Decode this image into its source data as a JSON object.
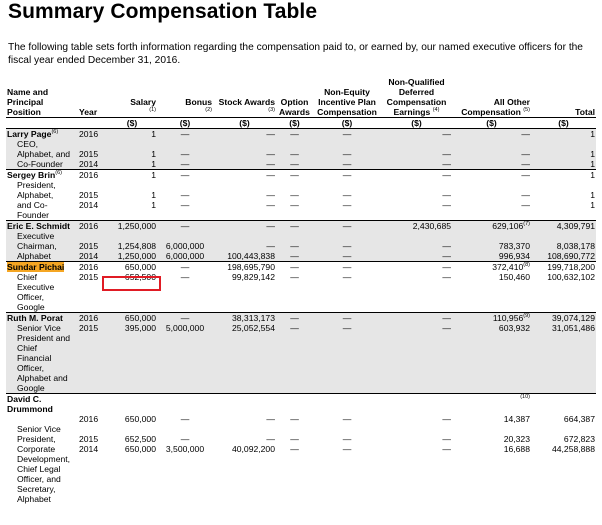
{
  "title": "Summary Compensation Table",
  "intro": "The following table sets forth information regarding the compensation paid to, or earned by, our named executive officers for the fiscal year ended December 31, 2016.",
  "headers": {
    "name": "Name and Principal Position",
    "year": "Year",
    "salary": "Salary",
    "salary_fn": "(1)",
    "bonus": "Bonus",
    "bonus_fn": "(2)",
    "stock": "Stock Awards",
    "stock_fn": "(3)",
    "option": "Option Awards",
    "nonequity": "Non-Equity Incentive Plan Compensation",
    "nqdc": "Non-Qualified Deferred Compensation Earnings",
    "nqdc_fn": "(4)",
    "other": "All Other Compensation",
    "other_fn": "(5)",
    "total": "Total",
    "unit": "($)"
  },
  "highlight_color": "#f5a623",
  "box_color": "#e01b24",
  "executives": [
    {
      "name": "Larry Page",
      "name_fn": "(6)",
      "rows": [
        {
          "role": "CEO,",
          "year": "2016",
          "salary": "1",
          "bonus": "—",
          "stock": "—",
          "option": "—",
          "nonequity": "—",
          "nqdc": "—",
          "other": "—",
          "other_fn": "",
          "total": "1"
        },
        {
          "role": "Alphabet, and",
          "year": "2015",
          "salary": "1",
          "bonus": "—",
          "stock": "—",
          "option": "—",
          "nonequity": "—",
          "nqdc": "—",
          "other": "—",
          "other_fn": "",
          "total": "1"
        },
        {
          "role": "Co-Founder",
          "year": "2014",
          "salary": "1",
          "bonus": "—",
          "stock": "—",
          "option": "—",
          "nonequity": "—",
          "nqdc": "—",
          "other": "—",
          "other_fn": "",
          "total": "1"
        }
      ]
    },
    {
      "name": "Sergey Brin",
      "name_fn": "(6)",
      "rows": [
        {
          "role": "",
          "year": "2016",
          "salary": "1",
          "bonus": "—",
          "stock": "—",
          "option": "—",
          "nonequity": "—",
          "nqdc": "—",
          "other": "—",
          "other_fn": "",
          "total": "1"
        },
        {
          "role": "President,",
          "year": "",
          "salary": "",
          "bonus": "",
          "stock": "",
          "option": "",
          "nonequity": "",
          "nqdc": "",
          "other": "",
          "other_fn": "",
          "total": ""
        },
        {
          "role": "Alphabet,",
          "year": "2015",
          "salary": "1",
          "bonus": "—",
          "stock": "—",
          "option": "—",
          "nonequity": "—",
          "nqdc": "—",
          "other": "—",
          "other_fn": "",
          "total": "1"
        },
        {
          "role": "and Co-",
          "year": "2014",
          "salary": "1",
          "bonus": "—",
          "stock": "—",
          "option": "—",
          "nonequity": "—",
          "nqdc": "—",
          "other": "—",
          "other_fn": "",
          "total": "1"
        },
        {
          "role": "Founder",
          "year": "",
          "salary": "",
          "bonus": "",
          "stock": "",
          "option": "",
          "nonequity": "",
          "nqdc": "",
          "other": "",
          "other_fn": "",
          "total": ""
        }
      ]
    },
    {
      "name": "Eric E. Schmidt",
      "name_fn": "",
      "rows": [
        {
          "role": "",
          "year": "2016",
          "salary": "1,250,000",
          "bonus": "—",
          "stock": "—",
          "option": "—",
          "nonequity": "—",
          "nqdc": "2,430,685",
          "other": "629,106",
          "other_fn": "(7)",
          "total": "4,309,791"
        },
        {
          "role": "Executive",
          "year": "",
          "salary": "",
          "bonus": "",
          "stock": "",
          "option": "",
          "nonequity": "",
          "nqdc": "",
          "other": "",
          "other_fn": "",
          "total": ""
        },
        {
          "role": "Chairman,",
          "year": "2015",
          "salary": "1,254,808",
          "bonus": "6,000,000",
          "stock": "—",
          "option": "—",
          "nonequity": "—",
          "nqdc": "—",
          "other": "783,370",
          "other_fn": "",
          "total": "8,038,178"
        },
        {
          "role": "Alphabet",
          "year": "2014",
          "salary": "1,250,000",
          "bonus": "6,000,000",
          "stock": "100,443,838",
          "option": "—",
          "nonequity": "—",
          "nqdc": "—",
          "other": "996,934",
          "other_fn": "",
          "total": "108,690,772"
        }
      ]
    },
    {
      "name": "Sundar Pichai",
      "name_fn": "",
      "highlight": true,
      "rows": [
        {
          "role": "",
          "year": "2016",
          "salary": "650,000",
          "bonus": "—",
          "stock": "198,695,790",
          "option": "—",
          "nonequity": "—",
          "nqdc": "—",
          "other": "372,410",
          "other_fn": "(8)",
          "total": "199,718,200"
        },
        {
          "role": "Chief",
          "year": "2015",
          "salary": "652,500",
          "bonus": "—",
          "stock": "99,829,142",
          "option": "—",
          "nonequity": "—",
          "nqdc": "—",
          "other": "150,460",
          "other_fn": "",
          "total": "100,632,102"
        },
        {
          "role": "Executive",
          "year": "",
          "salary": "",
          "bonus": "",
          "stock": "",
          "option": "",
          "nonequity": "",
          "nqdc": "",
          "other": "",
          "other_fn": "",
          "total": ""
        },
        {
          "role": "Officer,",
          "year": "",
          "salary": "",
          "bonus": "",
          "stock": "",
          "option": "",
          "nonequity": "",
          "nqdc": "",
          "other": "",
          "other_fn": "",
          "total": ""
        },
        {
          "role": "Google",
          "year": "",
          "salary": "",
          "bonus": "",
          "stock": "",
          "option": "",
          "nonequity": "",
          "nqdc": "",
          "other": "",
          "other_fn": "",
          "total": ""
        }
      ]
    },
    {
      "name": "Ruth M. Porat",
      "name_fn": "",
      "rows": [
        {
          "role": "",
          "year": "2016",
          "salary": "650,000",
          "bonus": "—",
          "stock": "38,313,173",
          "option": "—",
          "nonequity": "—",
          "nqdc": "—",
          "other": "110,956",
          "other_fn": "(9)",
          "total": "39,074,129"
        },
        {
          "role": "Senior Vice",
          "year": "2015",
          "salary": "395,000",
          "bonus": "5,000,000",
          "stock": "25,052,554",
          "option": "—",
          "nonequity": "—",
          "nqdc": "—",
          "other": "603,932",
          "other_fn": "",
          "total": "31,051,486"
        },
        {
          "role": "President and",
          "year": "",
          "salary": "",
          "bonus": "",
          "stock": "",
          "option": "",
          "nonequity": "",
          "nqdc": "",
          "other": "",
          "other_fn": "",
          "total": ""
        },
        {
          "role": "Chief",
          "year": "",
          "salary": "",
          "bonus": "",
          "stock": "",
          "option": "",
          "nonequity": "",
          "nqdc": "",
          "other": "",
          "other_fn": "",
          "total": ""
        },
        {
          "role": "Financial",
          "year": "",
          "salary": "",
          "bonus": "",
          "stock": "",
          "option": "",
          "nonequity": "",
          "nqdc": "",
          "other": "",
          "other_fn": "",
          "total": ""
        },
        {
          "role": "Officer,",
          "year": "",
          "salary": "",
          "bonus": "",
          "stock": "",
          "option": "",
          "nonequity": "",
          "nqdc": "",
          "other": "",
          "other_fn": "",
          "total": ""
        },
        {
          "role": "Alphabet and",
          "year": "",
          "salary": "",
          "bonus": "",
          "stock": "",
          "option": "",
          "nonequity": "",
          "nqdc": "",
          "other": "",
          "other_fn": "",
          "total": ""
        },
        {
          "role": "Google",
          "year": "",
          "salary": "",
          "bonus": "",
          "stock": "",
          "option": "",
          "nonequity": "",
          "nqdc": "",
          "other": "",
          "other_fn": "",
          "total": ""
        }
      ]
    },
    {
      "name": "David C. Drummond",
      "name_fn": "",
      "rows": [
        {
          "role": "",
          "year": "",
          "salary": "",
          "bonus": "",
          "stock": "",
          "option": "",
          "nonequity": "",
          "nqdc": "",
          "other": "",
          "other_fn": "(10)",
          "total": ""
        },
        {
          "role": "",
          "year": "2016",
          "salary": "650,000",
          "bonus": "—",
          "stock": "—",
          "option": "—",
          "nonequity": "—",
          "nqdc": "—",
          "other": "14,387",
          "other_fn": "",
          "total": "664,387"
        },
        {
          "role": "Senior Vice",
          "year": "",
          "salary": "",
          "bonus": "",
          "stock": "",
          "option": "",
          "nonequity": "",
          "nqdc": "",
          "other": "",
          "other_fn": "",
          "total": ""
        },
        {
          "role": "President,",
          "year": "2015",
          "salary": "652,500",
          "bonus": "—",
          "stock": "—",
          "option": "—",
          "nonequity": "—",
          "nqdc": "—",
          "other": "20,323",
          "other_fn": "",
          "total": "672,823"
        },
        {
          "role": "Corporate",
          "year": "2014",
          "salary": "650,000",
          "bonus": "3,500,000",
          "stock": "40,092,200",
          "option": "—",
          "nonequity": "—",
          "nqdc": "—",
          "other": "16,688",
          "other_fn": "",
          "total": "44,258,888"
        },
        {
          "role": "Development,",
          "year": "",
          "salary": "",
          "bonus": "",
          "stock": "",
          "option": "",
          "nonequity": "",
          "nqdc": "",
          "other": "",
          "other_fn": "",
          "total": ""
        },
        {
          "role": "Chief Legal",
          "year": "",
          "salary": "",
          "bonus": "",
          "stock": "",
          "option": "",
          "nonequity": "",
          "nqdc": "",
          "other": "",
          "other_fn": "",
          "total": ""
        },
        {
          "role": "Officer, and",
          "year": "",
          "salary": "",
          "bonus": "",
          "stock": "",
          "option": "",
          "nonequity": "",
          "nqdc": "",
          "other": "",
          "other_fn": "",
          "total": ""
        },
        {
          "role": "Secretary,",
          "year": "",
          "salary": "",
          "bonus": "",
          "stock": "",
          "option": "",
          "nonequity": "",
          "nqdc": "",
          "other": "",
          "other_fn": "",
          "total": ""
        },
        {
          "role": "Alphabet",
          "year": "",
          "salary": "",
          "bonus": "",
          "stock": "",
          "option": "",
          "nonequity": "",
          "nqdc": "",
          "other": "",
          "other_fn": "",
          "total": ""
        }
      ]
    }
  ]
}
